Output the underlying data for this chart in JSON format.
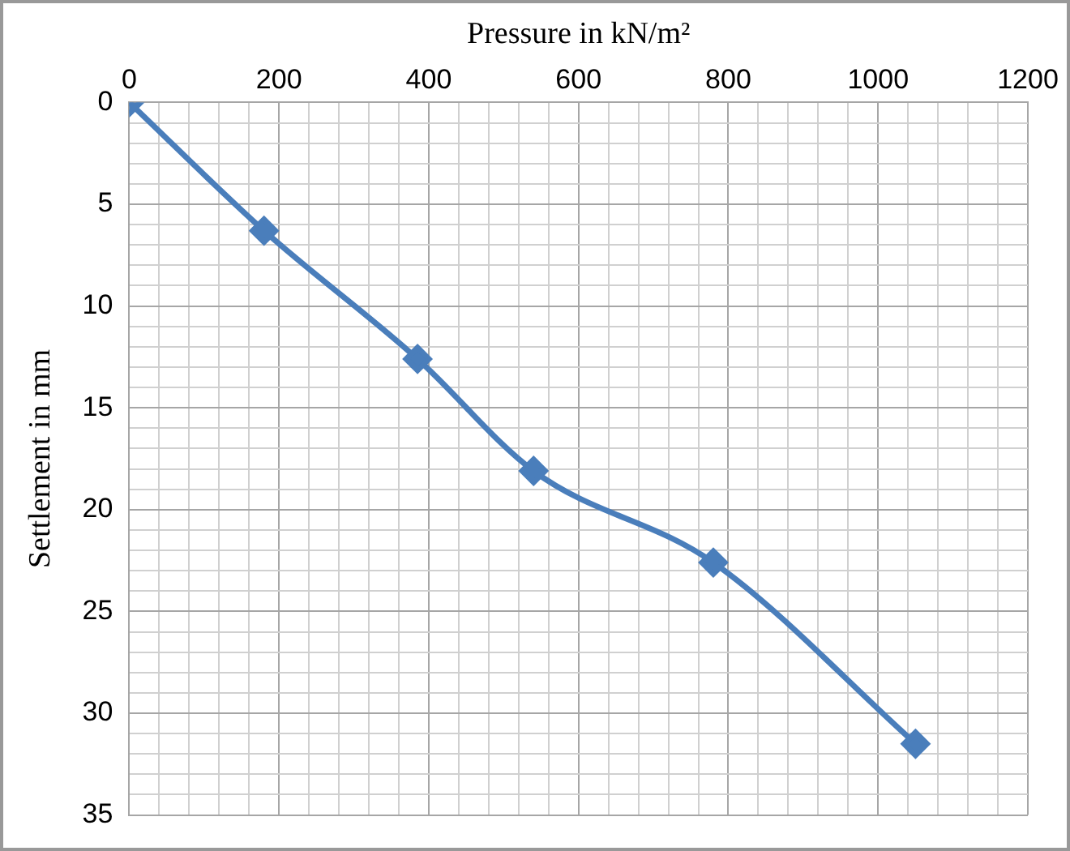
{
  "chart_data": {
    "type": "line",
    "xlabel": "Pressure in kN/m²",
    "ylabel": "Settlement in mm",
    "x": [
      0,
      180,
      385,
      540,
      780,
      1050
    ],
    "series": [
      {
        "color": "#4a7ebb",
        "values": [
          0,
          6.3,
          12.6,
          18.1,
          22.6,
          31.5
        ]
      }
    ],
    "xlim": [
      0,
      1200
    ],
    "xticks": [
      0,
      {
        "value": 40,
        "label": null
      },
      {
        "value": 80,
        "label": null
      },
      {
        "value": 120,
        "label": null
      },
      {
        "value": 160,
        "label": null
      },
      200,
      {
        "value": 240,
        "label": null
      },
      {
        "value": 280,
        "label": null
      },
      {
        "value": 320,
        "label": null
      },
      {
        "value": 360,
        "label": null
      },
      400,
      {
        "value": 440,
        "label": null
      },
      {
        "value": 480,
        "label": null
      },
      {
        "value": 520,
        "label": null
      },
      {
        "value": 560,
        "label": null
      },
      600,
      {
        "value": 640,
        "label": null
      },
      {
        "value": 680,
        "label": null
      },
      {
        "value": 720,
        "label": null
      },
      {
        "value": 760,
        "label": null
      },
      800,
      {
        "value": 840,
        "label": null
      },
      {
        "value": 880,
        "label": null
      },
      {
        "value": 920,
        "label": null
      },
      {
        "value": 960,
        "label": null
      },
      1000,
      {
        "value": 1040,
        "label": null
      },
      {
        "value": 1080,
        "label": null
      },
      {
        "value": 1120,
        "label": null
      },
      {
        "value": 1160,
        "label": null
      },
      1200
    ],
    "ylim": [
      35,
      0
    ],
    "yticks": [
      0,
      {
        "value": 1,
        "label": null
      },
      {
        "value": 2,
        "label": null
      },
      {
        "value": 3,
        "label": null
      },
      {
        "value": 4,
        "label": null
      },
      5,
      {
        "value": 6,
        "label": null
      },
      {
        "value": 7,
        "label": null
      },
      {
        "value": 8,
        "label": null
      },
      {
        "value": 9,
        "label": null
      },
      10,
      {
        "value": 11,
        "label": null
      },
      {
        "value": 12,
        "label": null
      },
      {
        "value": 13,
        "label": null
      },
      {
        "value": 14,
        "label": null
      },
      15,
      {
        "value": 16,
        "label": null
      },
      {
        "value": 17,
        "label": null
      },
      {
        "value": 18,
        "label": null
      },
      {
        "value": 19,
        "label": null
      },
      20,
      {
        "value": 21,
        "label": null
      },
      {
        "value": 22,
        "label": null
      },
      {
        "value": 23,
        "label": null
      },
      {
        "value": 24,
        "label": null
      },
      25,
      {
        "value": 26,
        "label": null
      },
      {
        "value": 27,
        "label": null
      },
      {
        "value": 28,
        "label": null
      },
      {
        "value": 29,
        "label": null
      },
      30,
      {
        "value": 31,
        "label": null
      },
      {
        "value": 32,
        "label": null
      },
      {
        "value": 33,
        "label": null
      },
      {
        "value": 34,
        "label": null
      },
      35
    ],
    "grid": true,
    "marker": "diamond",
    "line_style": "solid",
    "legend": false
  }
}
